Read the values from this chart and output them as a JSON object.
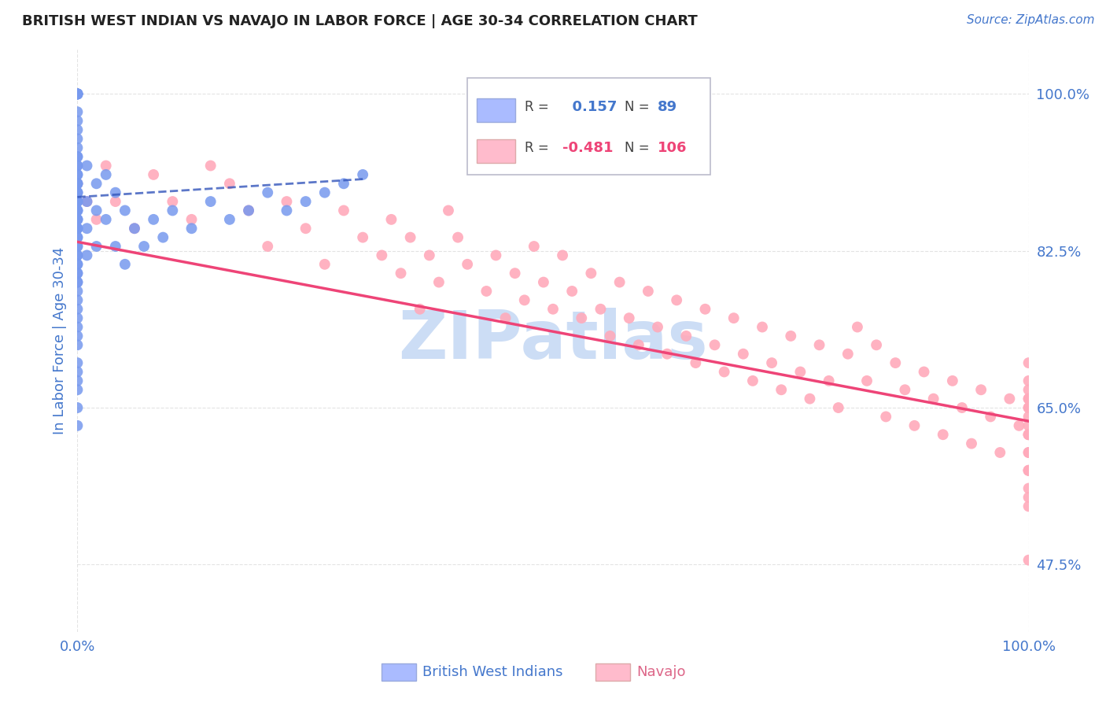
{
  "title": "BRITISH WEST INDIAN VS NAVAJO IN LABOR FORCE | AGE 30-34 CORRELATION CHART",
  "source_text": "Source: ZipAtlas.com",
  "ylabel": "In Labor Force | Age 30-34",
  "xlim": [
    0.0,
    1.0
  ],
  "ylim": [
    0.4,
    1.05
  ],
  "yticks": [
    0.475,
    0.65,
    0.825,
    1.0
  ],
  "ytick_labels": [
    "47.5%",
    "65.0%",
    "82.5%",
    "100.0%"
  ],
  "xticks": [
    0.0,
    1.0
  ],
  "xtick_labels": [
    "0.0%",
    "100.0%"
  ],
  "r_bwi": 0.157,
  "n_bwi": 89,
  "r_navajo": -0.481,
  "n_navajo": 106,
  "bwi_color": "#7799ee",
  "navajo_color": "#ffaabb",
  "bwi_line_color": "#3355bb",
  "navajo_line_color": "#ee4477",
  "legend_box_color_bwi": "#aabbff",
  "legend_box_color_navajo": "#ffbbcc",
  "watermark_text": "ZIPatlas",
  "watermark_color": "#ccddf5",
  "title_color": "#222222",
  "source_color": "#4477cc",
  "axis_label_color": "#4477cc",
  "tick_color": "#4477cc",
  "grid_color": "#dddddd",
  "background_color": "#ffffff",
  "bwi_line_start_y": 0.885,
  "bwi_line_end_y": 0.905,
  "navajo_line_start_y": 0.835,
  "navajo_line_end_y": 0.635,
  "bwi_x": [
    0.0,
    0.0,
    0.0,
    0.0,
    0.0,
    0.0,
    0.0,
    0.0,
    0.0,
    0.0,
    0.0,
    0.0,
    0.0,
    0.0,
    0.0,
    0.0,
    0.0,
    0.0,
    0.0,
    0.0,
    0.0,
    0.0,
    0.0,
    0.0,
    0.0,
    0.0,
    0.0,
    0.0,
    0.0,
    0.0,
    0.0,
    0.0,
    0.0,
    0.0,
    0.0,
    0.0,
    0.0,
    0.0,
    0.0,
    0.0,
    0.0,
    0.0,
    0.0,
    0.0,
    0.0,
    0.0,
    0.0,
    0.0,
    0.0,
    0.0,
    0.0,
    0.0,
    0.0,
    0.0,
    0.0,
    0.0,
    0.0,
    0.0,
    0.0,
    0.0,
    0.0,
    0.01,
    0.01,
    0.01,
    0.01,
    0.02,
    0.02,
    0.02,
    0.03,
    0.03,
    0.04,
    0.04,
    0.05,
    0.05,
    0.06,
    0.07,
    0.08,
    0.09,
    0.1,
    0.12,
    0.14,
    0.16,
    0.18,
    0.2,
    0.22,
    0.24,
    0.26,
    0.28,
    0.3
  ],
  "bwi_y": [
    1.0,
    1.0,
    1.0,
    1.0,
    1.0,
    1.0,
    1.0,
    0.98,
    0.97,
    0.96,
    0.95,
    0.94,
    0.93,
    0.93,
    0.92,
    0.92,
    0.91,
    0.91,
    0.9,
    0.9,
    0.9,
    0.89,
    0.89,
    0.89,
    0.88,
    0.88,
    0.88,
    0.87,
    0.87,
    0.87,
    0.86,
    0.86,
    0.86,
    0.85,
    0.85,
    0.85,
    0.84,
    0.84,
    0.83,
    0.83,
    0.82,
    0.82,
    0.81,
    0.81,
    0.8,
    0.8,
    0.79,
    0.79,
    0.78,
    0.77,
    0.76,
    0.75,
    0.74,
    0.73,
    0.72,
    0.7,
    0.69,
    0.68,
    0.67,
    0.65,
    0.63,
    0.92,
    0.88,
    0.85,
    0.82,
    0.9,
    0.87,
    0.83,
    0.91,
    0.86,
    0.89,
    0.83,
    0.87,
    0.81,
    0.85,
    0.83,
    0.86,
    0.84,
    0.87,
    0.85,
    0.88,
    0.86,
    0.87,
    0.89,
    0.87,
    0.88,
    0.89,
    0.9,
    0.91
  ],
  "navajo_x": [
    0.0,
    0.01,
    0.02,
    0.03,
    0.04,
    0.06,
    0.08,
    0.1,
    0.12,
    0.14,
    0.16,
    0.18,
    0.2,
    0.22,
    0.24,
    0.26,
    0.28,
    0.3,
    0.32,
    0.33,
    0.34,
    0.35,
    0.36,
    0.37,
    0.38,
    0.39,
    0.4,
    0.41,
    0.43,
    0.44,
    0.45,
    0.46,
    0.47,
    0.48,
    0.49,
    0.5,
    0.51,
    0.52,
    0.53,
    0.54,
    0.55,
    0.56,
    0.57,
    0.58,
    0.59,
    0.6,
    0.61,
    0.62,
    0.63,
    0.64,
    0.65,
    0.66,
    0.67,
    0.68,
    0.69,
    0.7,
    0.71,
    0.72,
    0.73,
    0.74,
    0.75,
    0.76,
    0.77,
    0.78,
    0.79,
    0.8,
    0.81,
    0.82,
    0.83,
    0.84,
    0.85,
    0.86,
    0.87,
    0.88,
    0.89,
    0.9,
    0.91,
    0.92,
    0.93,
    0.94,
    0.95,
    0.96,
    0.97,
    0.98,
    0.99,
    1.0,
    1.0,
    1.0,
    1.0,
    1.0,
    1.0,
    1.0,
    1.0,
    1.0,
    1.0,
    1.0,
    1.0,
    1.0,
    1.0,
    1.0,
    1.0,
    1.0,
    1.0,
    1.0,
    1.0,
    1.0
  ],
  "navajo_y": [
    0.9,
    0.88,
    0.86,
    0.92,
    0.88,
    0.85,
    0.91,
    0.88,
    0.86,
    0.92,
    0.9,
    0.87,
    0.83,
    0.88,
    0.85,
    0.81,
    0.87,
    0.84,
    0.82,
    0.86,
    0.8,
    0.84,
    0.76,
    0.82,
    0.79,
    0.87,
    0.84,
    0.81,
    0.78,
    0.82,
    0.75,
    0.8,
    0.77,
    0.83,
    0.79,
    0.76,
    0.82,
    0.78,
    0.75,
    0.8,
    0.76,
    0.73,
    0.79,
    0.75,
    0.72,
    0.78,
    0.74,
    0.71,
    0.77,
    0.73,
    0.7,
    0.76,
    0.72,
    0.69,
    0.75,
    0.71,
    0.68,
    0.74,
    0.7,
    0.67,
    0.73,
    0.69,
    0.66,
    0.72,
    0.68,
    0.65,
    0.71,
    0.74,
    0.68,
    0.72,
    0.64,
    0.7,
    0.67,
    0.63,
    0.69,
    0.66,
    0.62,
    0.68,
    0.65,
    0.61,
    0.67,
    0.64,
    0.6,
    0.66,
    0.63,
    0.62,
    0.66,
    0.7,
    0.63,
    0.67,
    0.6,
    0.64,
    0.68,
    0.58,
    0.48,
    0.62,
    0.56,
    0.66,
    0.6,
    0.54,
    0.65,
    0.58,
    0.62,
    0.55,
    0.65,
    0.58
  ]
}
